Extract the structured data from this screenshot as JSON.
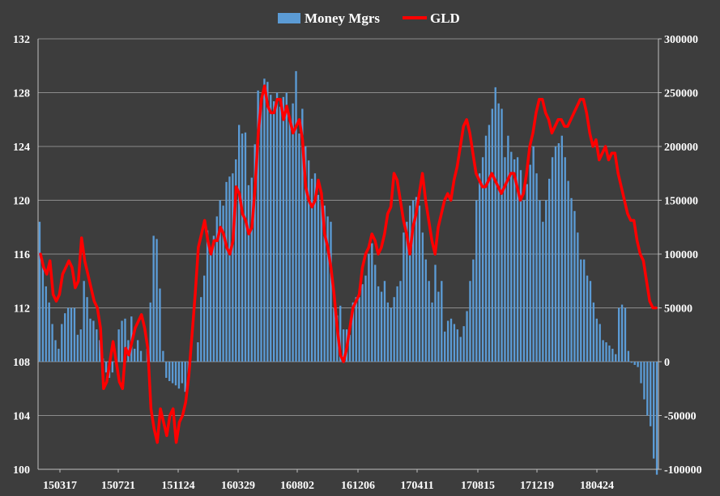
{
  "chart_data": {
    "type": "bar+line",
    "title": "",
    "legend": {
      "position": "top-center",
      "items": [
        {
          "label": "Money Mgrs",
          "kind": "bar",
          "color": "#5b9bd5"
        },
        {
          "label": "GLD",
          "kind": "line",
          "color": "#ff0000"
        }
      ]
    },
    "grid": true,
    "x_tick_labels": [
      "150317",
      "150721",
      "151124",
      "160329",
      "160802",
      "161206",
      "170411",
      "170815",
      "171219",
      "180424"
    ],
    "y_left": {
      "label": "",
      "ticks": [
        100,
        104,
        108,
        112,
        116,
        120,
        124,
        128,
        132
      ],
      "range": [
        100,
        132
      ]
    },
    "y_right": {
      "label": "",
      "ticks": [
        -100000,
        -50000,
        0,
        50000,
        100000,
        150000,
        200000,
        250000,
        300000
      ],
      "range": [
        -100000,
        300000
      ]
    },
    "series": [
      {
        "name": "Money Mgrs",
        "type": "bar",
        "axis": "right",
        "values": [
          130000,
          90000,
          70000,
          55000,
          35000,
          20000,
          12000,
          35000,
          45000,
          50000,
          50000,
          50000,
          25000,
          30000,
          75000,
          60000,
          40000,
          38000,
          30000,
          20000,
          3000,
          -10000,
          -15000,
          -10000,
          0,
          30000,
          38000,
          40000,
          20000,
          42000,
          12000,
          20000,
          10000,
          0,
          12000,
          55000,
          117000,
          114000,
          68000,
          10000,
          -15000,
          -18000,
          -20000,
          -22000,
          -25000,
          -20000,
          -28000,
          -15000,
          0,
          0,
          18000,
          60000,
          80000,
          122000,
          105000,
          117000,
          135000,
          150000,
          145000,
          167000,
          172000,
          175000,
          188000,
          220000,
          212000,
          213000,
          164000,
          171000,
          202000,
          252000,
          245000,
          263000,
          260000,
          248000,
          242000,
          250000,
          237000,
          246000,
          250000,
          225000,
          240000,
          270000,
          212000,
          235000,
          200000,
          187000,
          170000,
          175000,
          155000,
          150000,
          145000,
          135000,
          130000,
          50000,
          43000,
          52000,
          30000,
          30000,
          25000,
          55000,
          60000,
          60000,
          72000,
          80000,
          100000,
          110000,
          90000,
          70000,
          65000,
          75000,
          55000,
          50000,
          60000,
          70000,
          75000,
          120000,
          130000,
          145000,
          150000,
          153000,
          145000,
          120000,
          95000,
          75000,
          55000,
          90000,
          65000,
          75000,
          28000,
          38000,
          40000,
          35000,
          30000,
          23000,
          33000,
          47000,
          75000,
          95000,
          150000,
          175000,
          190000,
          210000,
          220000,
          235000,
          255000,
          240000,
          235000,
          190000,
          210000,
          195000,
          188000,
          190000,
          178000,
          150000,
          165000,
          183000,
          200000,
          175000,
          150000,
          130000,
          150000,
          170000,
          190000,
          200000,
          203000,
          210000,
          190000,
          168000,
          152000,
          140000,
          120000,
          95000,
          95000,
          80000,
          75000,
          55000,
          40000,
          35000,
          20000,
          18000,
          15000,
          12000,
          7000,
          50000,
          53000,
          50000,
          10000,
          -1000,
          -3000,
          -5000,
          -20000,
          -35000,
          -50000,
          -60000,
          -90000,
          -105000
        ]
      },
      {
        "name": "GLD",
        "type": "line",
        "axis": "left",
        "values": [
          116.0,
          115.0,
          114.5,
          115.5,
          113.0,
          112.5,
          113.0,
          114.5,
          115.0,
          115.5,
          115.0,
          113.5,
          114.0,
          117.2,
          115.5,
          114.5,
          113.5,
          112.5,
          112.0,
          110.5,
          106.0,
          106.5,
          108.0,
          109.5,
          108.0,
          106.5,
          106.0,
          109.0,
          108.5,
          109.5,
          110.5,
          111.0,
          111.5,
          110.5,
          109.0,
          104.5,
          103.0,
          102.0,
          104.5,
          103.5,
          102.5,
          104.0,
          104.5,
          102.0,
          103.5,
          104.0,
          105.0,
          107.0,
          110.0,
          113.0,
          116.5,
          117.5,
          118.5,
          117.0,
          116.0,
          117.0,
          117.0,
          118.0,
          117.5,
          116.5,
          116.0,
          117.0,
          121.0,
          120.5,
          119.0,
          118.5,
          117.5,
          118.0,
          121.0,
          125.0,
          127.5,
          128.5,
          127.0,
          126.5,
          126.5,
          127.5,
          127.5,
          126.0,
          127.0,
          126.0,
          125.0,
          125.5,
          126.0,
          124.5,
          121.0,
          120.0,
          119.5,
          120.0,
          121.5,
          120.5,
          117.5,
          116.5,
          115.0,
          113.0,
          110.5,
          108.5,
          108.0,
          109.0,
          110.5,
          112.0,
          112.5,
          113.0,
          115.0,
          116.0,
          116.5,
          117.5,
          117.0,
          116.0,
          116.5,
          117.5,
          119.0,
          119.5,
          122.0,
          121.5,
          120.0,
          118.5,
          117.5,
          116.0,
          118.0,
          119.0,
          120.5,
          122.0,
          120.0,
          118.5,
          117.0,
          116.0,
          118.0,
          119.0,
          120.0,
          120.5,
          120.0,
          121.5,
          122.5,
          124.0,
          125.5,
          126.0,
          125.0,
          123.5,
          122.0,
          121.5,
          121.0,
          121.0,
          121.5,
          122.0,
          121.5,
          121.0,
          120.5,
          121.0,
          121.5,
          122.0,
          122.0,
          121.0,
          120.0,
          120.5,
          122.0,
          124.0,
          125.0,
          126.5,
          127.5,
          127.5,
          126.5,
          126.0,
          125.0,
          125.5,
          126.0,
          126.0,
          125.5,
          125.5,
          126.0,
          126.5,
          127.0,
          127.5,
          127.5,
          126.5,
          125.0,
          124.0,
          124.5,
          123.0,
          123.5,
          124.0,
          123.0,
          123.5,
          123.5,
          122.0,
          121.0,
          120.0,
          119.0,
          118.5,
          118.5,
          117.0,
          116.0,
          115.5,
          114.0,
          112.5,
          112.0,
          112.0
        ]
      }
    ]
  }
}
